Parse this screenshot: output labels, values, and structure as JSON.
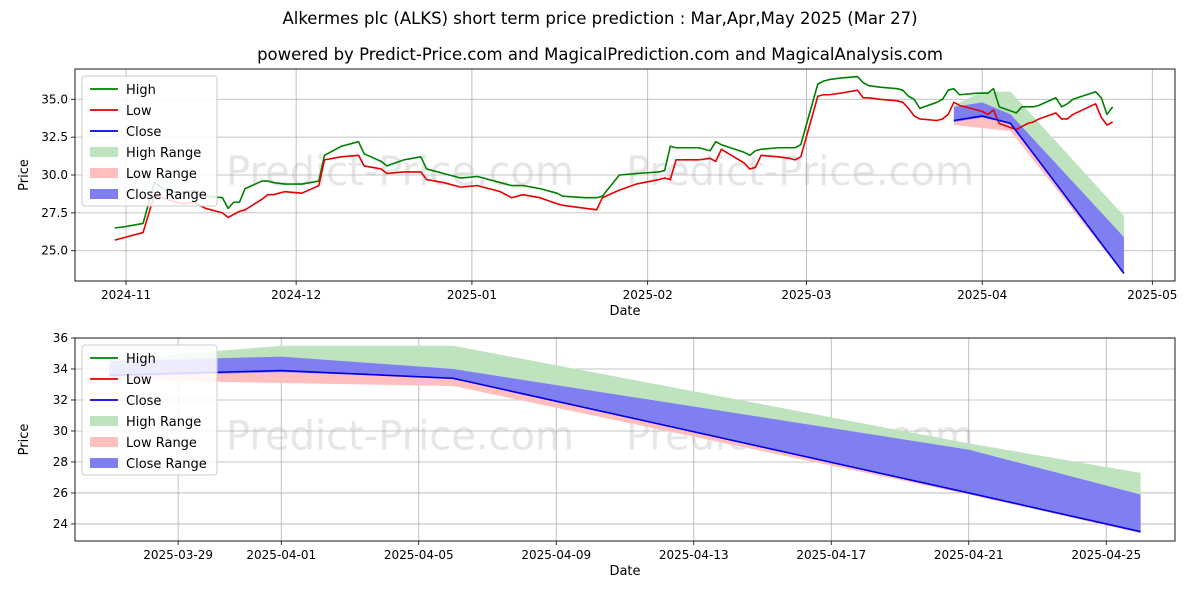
{
  "title": {
    "line1": "Alkermes plc (ALKS) short term price prediction : Mar,Apr,May 2025 (Mar 27)",
    "line2": "powered by Predict-Price.com and MagicalPrediction.com and MagicalAnalysis.com"
  },
  "watermark": "Predict-Price.com",
  "colors": {
    "high": "#008000",
    "low": "#e60000",
    "close": "#0000e6",
    "high_range": "#bfe3bf",
    "low_range": "#ffbfbf",
    "close_range": "#7f7ff2",
    "grid": "#b0b0b0"
  },
  "chart_data": [
    {
      "type": "line",
      "panel": "top",
      "xlabel": "Date",
      "ylabel": "Price",
      "x_ticks": [
        "2024-11",
        "2024-12",
        "2025-01",
        "2025-02",
        "2025-03",
        "2025-04",
        "2025-05"
      ],
      "y_ticks": [
        "25.0",
        "27.5",
        "30.0",
        "32.5",
        "35.0"
      ],
      "ylim": [
        23.0,
        37.0
      ],
      "xlim": [
        "2024-10-23",
        "2025-05-05"
      ],
      "grid": true,
      "legend": {
        "position": "top-left",
        "entries": [
          "High",
          "Low",
          "Close",
          "High Range",
          "Low Range",
          "Close Range"
        ]
      },
      "series": [
        {
          "name": "High",
          "points": [
            [
              "2024-10-30",
              26.5
            ],
            [
              "2024-11-01",
              26.6
            ],
            [
              "2024-11-04",
              26.8
            ],
            [
              "2024-11-06",
              29.5
            ],
            [
              "2024-11-08",
              29.0
            ],
            [
              "2024-11-11",
              28.8
            ],
            [
              "2024-11-13",
              29.0
            ],
            [
              "2024-11-15",
              28.6
            ],
            [
              "2024-11-18",
              28.5
            ],
            [
              "2024-11-19",
              27.8
            ],
            [
              "2024-11-20",
              28.2
            ],
            [
              "2024-11-21",
              28.2
            ],
            [
              "2024-11-22",
              29.1
            ],
            [
              "2024-11-25",
              29.6
            ],
            [
              "2024-11-26",
              29.6
            ],
            [
              "2024-11-27",
              29.5
            ],
            [
              "2024-11-29",
              29.4
            ],
            [
              "2024-12-02",
              29.4
            ],
            [
              "2024-12-05",
              29.6
            ],
            [
              "2024-12-06",
              31.3
            ],
            [
              "2024-12-09",
              31.9
            ],
            [
              "2024-12-12",
              32.2
            ],
            [
              "2024-12-13",
              31.4
            ],
            [
              "2024-12-16",
              30.9
            ],
            [
              "2024-12-17",
              30.6
            ],
            [
              "2024-12-20",
              31.0
            ],
            [
              "2024-12-23",
              31.2
            ],
            [
              "2024-12-24",
              30.4
            ],
            [
              "2024-12-27",
              30.1
            ],
            [
              "2024-12-30",
              29.8
            ],
            [
              "2025-01-02",
              29.9
            ],
            [
              "2025-01-06",
              29.5
            ],
            [
              "2025-01-08",
              29.3
            ],
            [
              "2025-01-10",
              29.3
            ],
            [
              "2025-01-13",
              29.1
            ],
            [
              "2025-01-16",
              28.8
            ],
            [
              "2025-01-17",
              28.6
            ],
            [
              "2025-01-21",
              28.5
            ],
            [
              "2025-01-23",
              28.5
            ],
            [
              "2025-01-24",
              28.6
            ],
            [
              "2025-01-27",
              30.0
            ],
            [
              "2025-01-30",
              30.1
            ],
            [
              "2025-02-03",
              30.2
            ],
            [
              "2025-02-04",
              30.3
            ],
            [
              "2025-02-05",
              31.9
            ],
            [
              "2025-02-06",
              31.8
            ],
            [
              "2025-02-10",
              31.8
            ],
            [
              "2025-02-12",
              31.6
            ],
            [
              "2025-02-13",
              32.2
            ],
            [
              "2025-02-14",
              32.0
            ],
            [
              "2025-02-18",
              31.5
            ],
            [
              "2025-02-19",
              31.3
            ],
            [
              "2025-02-20",
              31.6
            ],
            [
              "2025-02-21",
              31.7
            ],
            [
              "2025-02-24",
              31.8
            ],
            [
              "2025-02-26",
              31.8
            ],
            [
              "2025-02-27",
              31.8
            ],
            [
              "2025-02-28",
              32.0
            ],
            [
              "2025-03-03",
              36.0
            ],
            [
              "2025-03-04",
              36.2
            ],
            [
              "2025-03-05",
              36.3
            ],
            [
              "2025-03-07",
              36.4
            ],
            [
              "2025-03-10",
              36.5
            ],
            [
              "2025-03-11",
              36.1
            ],
            [
              "2025-03-12",
              35.9
            ],
            [
              "2025-03-14",
              35.8
            ],
            [
              "2025-03-17",
              35.7
            ],
            [
              "2025-03-18",
              35.6
            ],
            [
              "2025-03-19",
              35.2
            ],
            [
              "2025-03-20",
              35.0
            ],
            [
              "2025-03-21",
              34.4
            ],
            [
              "2025-03-24",
              34.8
            ],
            [
              "2025-03-25",
              35.0
            ],
            [
              "2025-03-26",
              35.6
            ],
            [
              "2025-03-27",
              35.7
            ],
            [
              "2025-03-28",
              35.3
            ],
            [
              "2025-03-31",
              35.4
            ],
            [
              "2025-04-01",
              35.4
            ],
            [
              "2025-04-02",
              35.4
            ],
            [
              "2025-04-03",
              35.7
            ],
            [
              "2025-04-04",
              34.5
            ],
            [
              "2025-04-07",
              34.1
            ],
            [
              "2025-04-08",
              34.5
            ],
            [
              "2025-04-09",
              34.5
            ],
            [
              "2025-04-10",
              34.5
            ],
            [
              "2025-04-11",
              34.6
            ],
            [
              "2025-04-14",
              35.1
            ],
            [
              "2025-04-15",
              34.5
            ],
            [
              "2025-04-16",
              34.7
            ],
            [
              "2025-04-17",
              35.0
            ],
            [
              "2025-04-21",
              35.5
            ],
            [
              "2025-04-22",
              35.1
            ],
            [
              "2025-04-23",
              34.0
            ],
            [
              "2025-04-24",
              34.5
            ]
          ]
        },
        {
          "name": "Low",
          "points": [
            [
              "2024-10-30",
              25.7
            ],
            [
              "2024-11-01",
              25.9
            ],
            [
              "2024-11-04",
              26.2
            ],
            [
              "2024-11-06",
              28.7
            ],
            [
              "2024-11-08",
              28.4
            ],
            [
              "2024-11-11",
              28.1
            ],
            [
              "2024-11-13",
              28.2
            ],
            [
              "2024-11-15",
              27.8
            ],
            [
              "2024-11-18",
              27.5
            ],
            [
              "2024-11-19",
              27.2
            ],
            [
              "2024-11-20",
              27.4
            ],
            [
              "2024-11-21",
              27.6
            ],
            [
              "2024-11-22",
              27.7
            ],
            [
              "2024-11-25",
              28.4
            ],
            [
              "2024-11-26",
              28.7
            ],
            [
              "2024-11-27",
              28.7
            ],
            [
              "2024-11-29",
              28.9
            ],
            [
              "2024-12-02",
              28.8
            ],
            [
              "2024-12-05",
              29.3
            ],
            [
              "2024-12-06",
              31.0
            ],
            [
              "2024-12-09",
              31.2
            ],
            [
              "2024-12-12",
              31.3
            ],
            [
              "2024-12-13",
              30.6
            ],
            [
              "2024-12-16",
              30.4
            ],
            [
              "2024-12-17",
              30.1
            ],
            [
              "2024-12-20",
              30.2
            ],
            [
              "2024-12-23",
              30.2
            ],
            [
              "2024-12-24",
              29.7
            ],
            [
              "2024-12-27",
              29.5
            ],
            [
              "2024-12-30",
              29.2
            ],
            [
              "2025-01-02",
              29.3
            ],
            [
              "2025-01-06",
              28.9
            ],
            [
              "2025-01-08",
              28.5
            ],
            [
              "2025-01-10",
              28.7
            ],
            [
              "2025-01-13",
              28.5
            ],
            [
              "2025-01-16",
              28.1
            ],
            [
              "2025-01-17",
              28.0
            ],
            [
              "2025-01-21",
              27.8
            ],
            [
              "2025-01-23",
              27.7
            ],
            [
              "2025-01-24",
              28.5
            ],
            [
              "2025-01-27",
              29.0
            ],
            [
              "2025-01-30",
              29.4
            ],
            [
              "2025-02-03",
              29.7
            ],
            [
              "2025-02-04",
              29.8
            ],
            [
              "2025-02-05",
              29.7
            ],
            [
              "2025-02-06",
              31.0
            ],
            [
              "2025-02-10",
              31.0
            ],
            [
              "2025-02-12",
              31.1
            ],
            [
              "2025-02-13",
              30.9
            ],
            [
              "2025-02-14",
              31.7
            ],
            [
              "2025-02-18",
              30.8
            ],
            [
              "2025-02-19",
              30.4
            ],
            [
              "2025-02-20",
              30.5
            ],
            [
              "2025-02-21",
              31.3
            ],
            [
              "2025-02-24",
              31.2
            ],
            [
              "2025-02-26",
              31.1
            ],
            [
              "2025-02-27",
              31.0
            ],
            [
              "2025-02-28",
              31.2
            ],
            [
              "2025-03-03",
              35.2
            ],
            [
              "2025-03-04",
              35.3
            ],
            [
              "2025-03-05",
              35.3
            ],
            [
              "2025-03-07",
              35.4
            ],
            [
              "2025-03-10",
              35.6
            ],
            [
              "2025-03-11",
              35.1
            ],
            [
              "2025-03-12",
              35.1
            ],
            [
              "2025-03-14",
              35.0
            ],
            [
              "2025-03-17",
              34.9
            ],
            [
              "2025-03-18",
              34.8
            ],
            [
              "2025-03-19",
              34.4
            ],
            [
              "2025-03-20",
              33.9
            ],
            [
              "2025-03-21",
              33.7
            ],
            [
              "2025-03-24",
              33.6
            ],
            [
              "2025-03-25",
              33.7
            ],
            [
              "2025-03-26",
              34.0
            ],
            [
              "2025-03-27",
              34.8
            ],
            [
              "2025-03-28",
              34.6
            ],
            [
              "2025-03-31",
              34.3
            ],
            [
              "2025-04-01",
              34.2
            ],
            [
              "2025-04-02",
              34.0
            ],
            [
              "2025-04-03",
              34.3
            ],
            [
              "2025-04-04",
              33.4
            ],
            [
              "2025-04-07",
              33.0
            ],
            [
              "2025-04-08",
              33.2
            ],
            [
              "2025-04-09",
              33.4
            ],
            [
              "2025-04-10",
              33.5
            ],
            [
              "2025-04-11",
              33.7
            ],
            [
              "2025-04-14",
              34.1
            ],
            [
              "2025-04-15",
              33.7
            ],
            [
              "2025-04-16",
              33.7
            ],
            [
              "2025-04-17",
              34.0
            ],
            [
              "2025-04-21",
              34.7
            ],
            [
              "2025-04-22",
              33.8
            ],
            [
              "2025-04-23",
              33.3
            ],
            [
              "2025-04-24",
              33.5
            ]
          ]
        }
      ],
      "forecast": {
        "dates": [
          "2025-03-27",
          "2025-04-01",
          "2025-04-06",
          "2025-04-26"
        ],
        "close": [
          33.6,
          33.9,
          33.4,
          23.5
        ],
        "high_range": [
          [
            33.8,
            34.6
          ],
          [
            34.4,
            35.5
          ],
          [
            33.9,
            35.5
          ],
          [
            25.9,
            27.3
          ]
        ],
        "low_range": [
          [
            33.3,
            33.7
          ],
          [
            33.1,
            33.9
          ],
          [
            32.9,
            33.5
          ],
          [
            23.4,
            23.6
          ]
        ],
        "close_range": [
          [
            33.5,
            34.5
          ],
          [
            33.8,
            34.8
          ],
          [
            33.4,
            34.0
          ],
          [
            23.5,
            25.9
          ]
        ]
      }
    },
    {
      "type": "line",
      "panel": "bottom",
      "xlabel": "Date",
      "ylabel": "Price",
      "x_ticks": [
        "2025-03-29",
        "2025-04-01",
        "2025-04-05",
        "2025-04-09",
        "2025-04-13",
        "2025-04-17",
        "2025-04-21",
        "2025-04-25"
      ],
      "y_ticks": [
        "24",
        "26",
        "28",
        "30",
        "32",
        "34",
        "36"
      ],
      "ylim": [
        22.9,
        36.0
      ],
      "xlim": [
        "2025-03-26",
        "2025-04-27"
      ],
      "grid": true,
      "legend": {
        "position": "top-left",
        "entries": [
          "High",
          "Low",
          "Close",
          "High Range",
          "Low Range",
          "Close Range"
        ]
      },
      "forecast": {
        "dates": [
          "2025-03-27",
          "2025-04-01",
          "2025-04-06",
          "2025-04-21",
          "2025-04-26"
        ],
        "close": [
          33.6,
          33.9,
          33.4,
          26.0,
          23.5
        ],
        "high_range": [
          [
            33.8,
            34.6
          ],
          [
            34.4,
            35.5
          ],
          [
            33.9,
            35.5
          ],
          [
            28.8,
            29.2
          ],
          [
            25.9,
            27.3
          ]
        ],
        "low_range": [
          [
            33.3,
            33.7
          ],
          [
            33.1,
            33.9
          ],
          [
            32.9,
            33.5
          ],
          [
            25.9,
            26.1
          ],
          [
            23.4,
            23.6
          ]
        ],
        "close_range": [
          [
            33.5,
            34.5
          ],
          [
            33.8,
            34.8
          ],
          [
            33.4,
            34.0
          ],
          [
            26.0,
            28.8
          ],
          [
            23.5,
            25.9
          ]
        ]
      }
    }
  ]
}
